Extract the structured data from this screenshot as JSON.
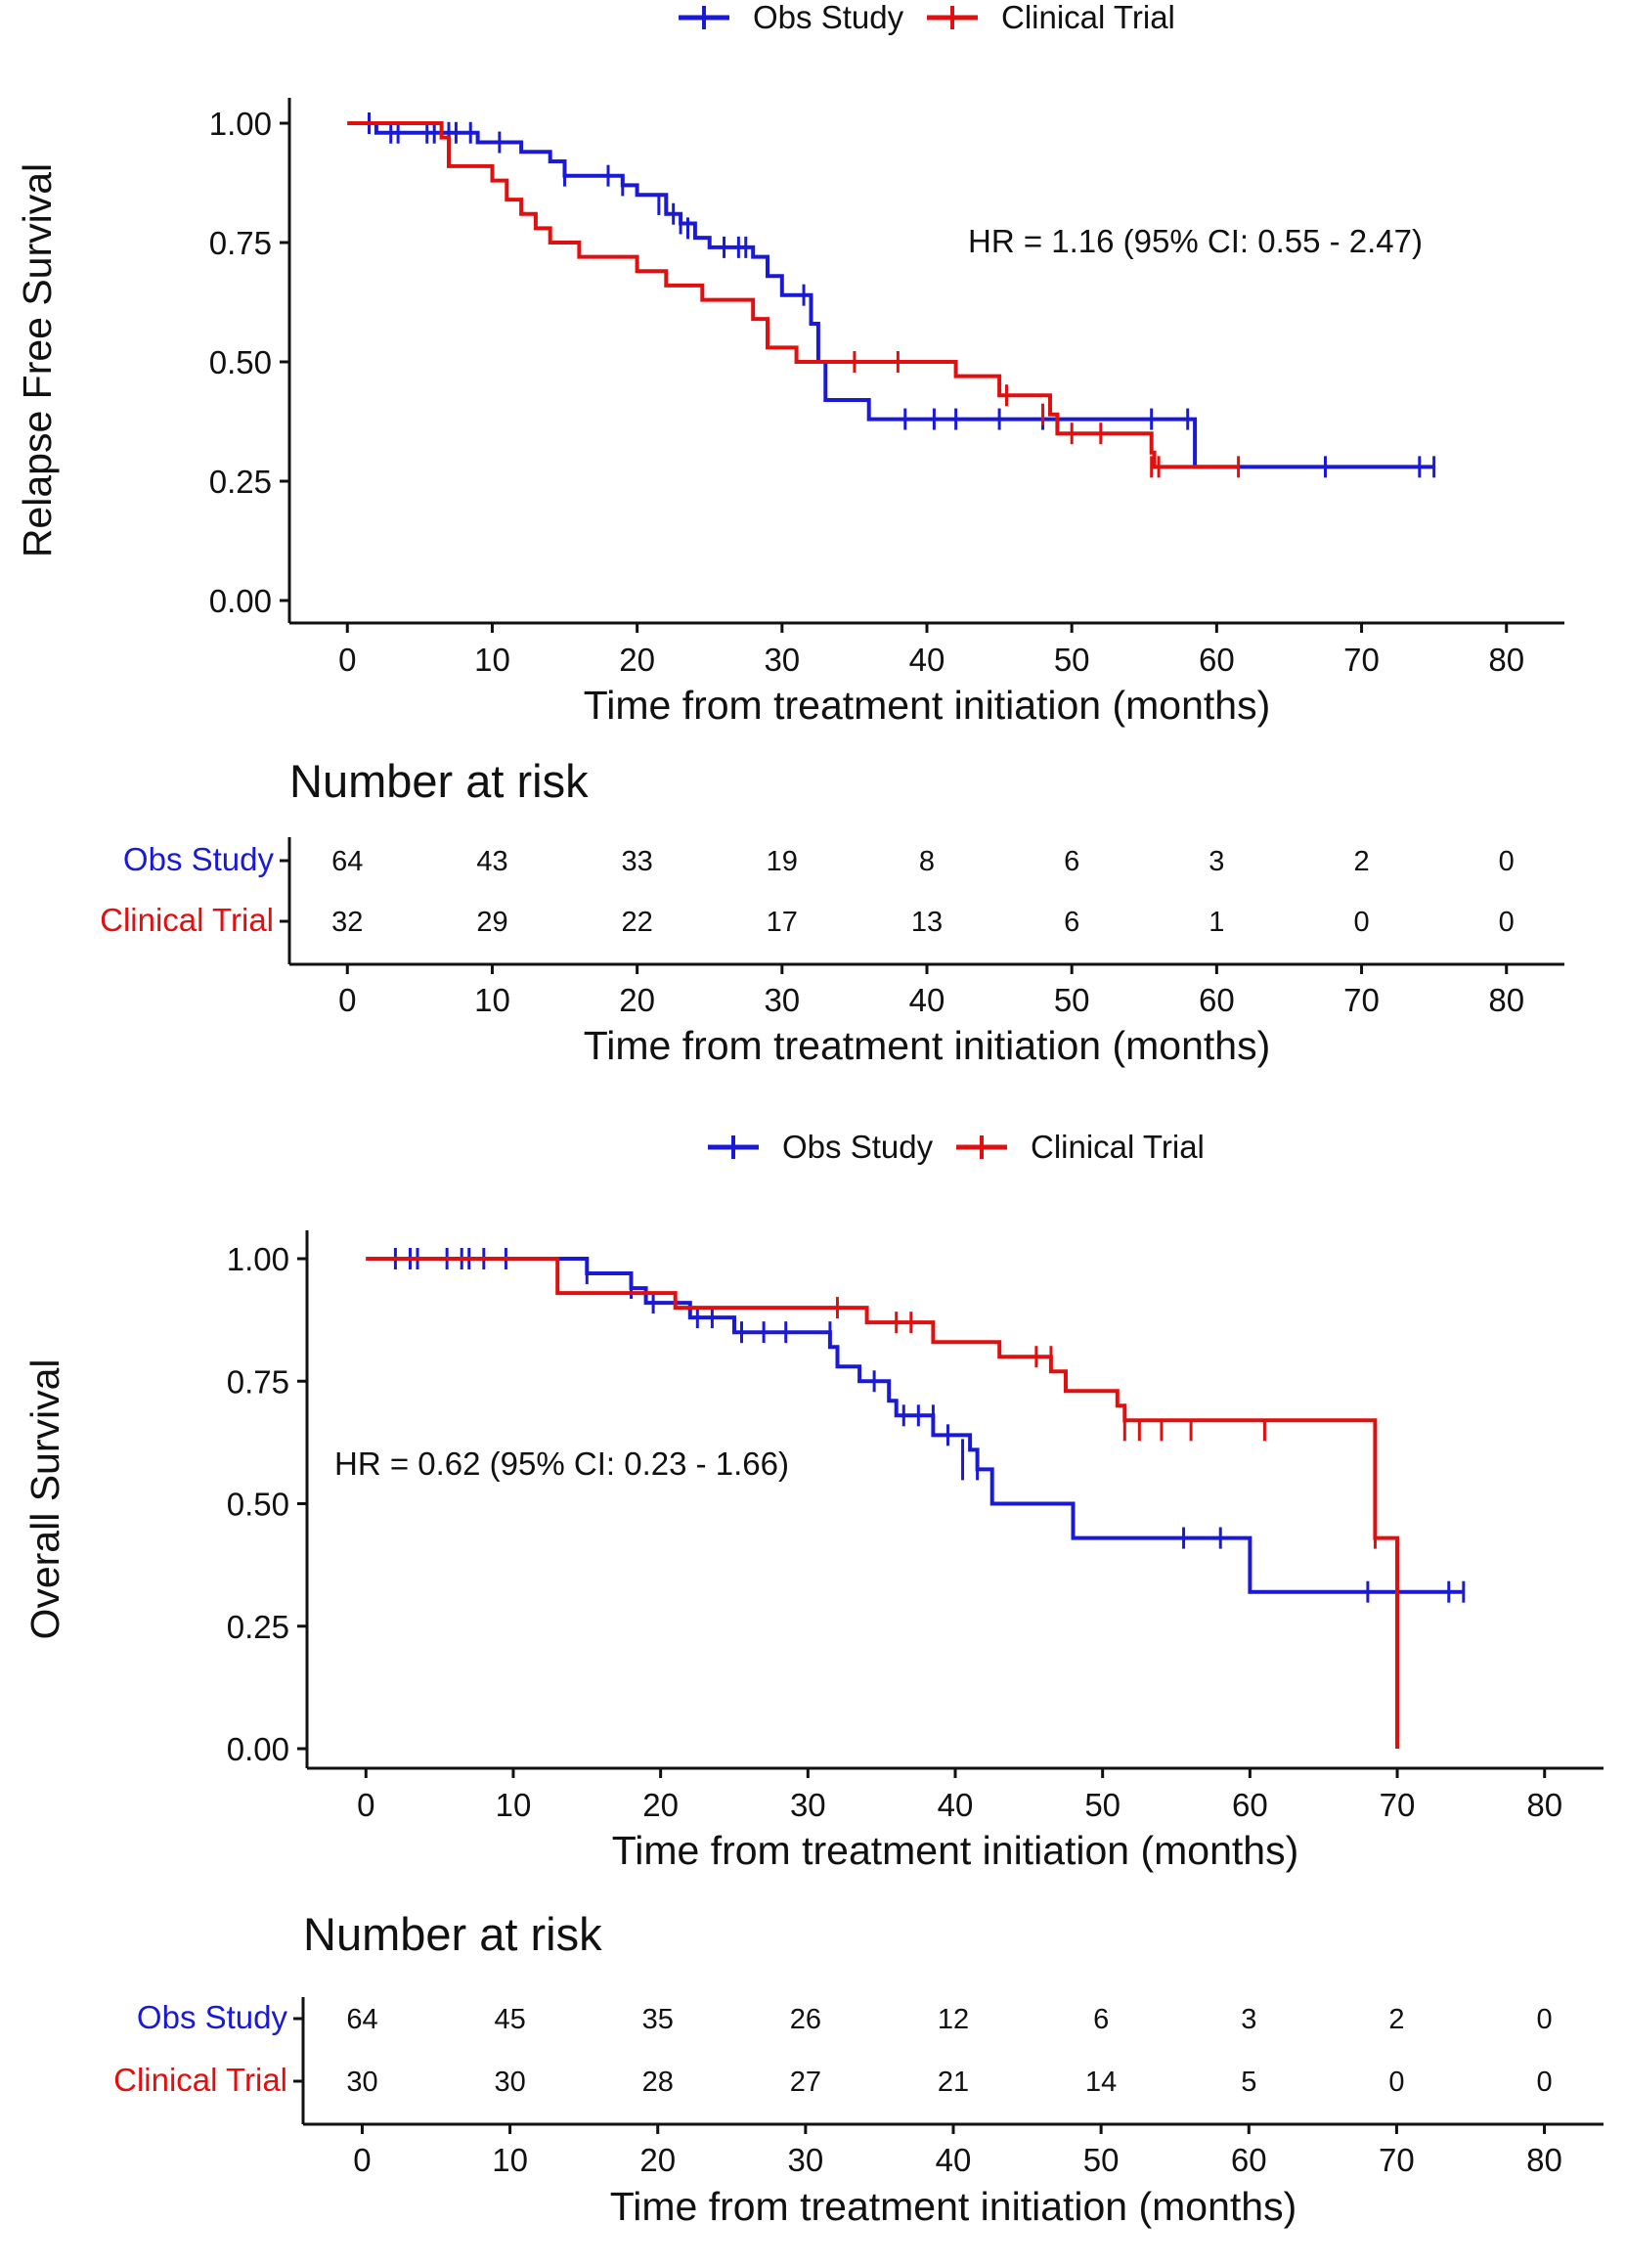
{
  "chart_data": [
    {
      "type": "line",
      "subtype": "kaplan-meier",
      "title": "",
      "xlabel": "Time from treatment initiation (months)",
      "ylabel": "Relapse Free Survival",
      "xlim": [
        -4,
        84
      ],
      "ylim": [
        0,
        1
      ],
      "xticks": [
        "0",
        "10",
        "20",
        "30",
        "40",
        "50",
        "60",
        "70",
        "80"
      ],
      "yticks": [
        "0.00",
        "0.25",
        "0.50",
        "0.75",
        "1.00"
      ],
      "legend": [
        "Obs Study",
        "Clinical Trial"
      ],
      "legend_position": "top",
      "annotation": "HR = 1.16 (95% CI: 0.55 - 2.47)",
      "series": [
        {
          "name": "Obs Study",
          "color": "#1a1ad6",
          "steps": [
            [
              0,
              1.0
            ],
            [
              2,
              0.98
            ],
            [
              9,
              0.96
            ],
            [
              12,
              0.94
            ],
            [
              14,
              0.92
            ],
            [
              15,
              0.89
            ],
            [
              19,
              0.87
            ],
            [
              20,
              0.85
            ],
            [
              22,
              0.81
            ],
            [
              23,
              0.79
            ],
            [
              24,
              0.76
            ],
            [
              25,
              0.74
            ],
            [
              28,
              0.72
            ],
            [
              29,
              0.68
            ],
            [
              30,
              0.64
            ],
            [
              32,
              0.58
            ],
            [
              32.5,
              0.5
            ],
            [
              33,
              0.42
            ],
            [
              36,
              0.38
            ],
            [
              58.5,
              0.28
            ],
            [
              75,
              0.28
            ]
          ],
          "censor": [
            [
              1.5,
              1.0
            ],
            [
              3,
              0.98
            ],
            [
              3.5,
              0.98
            ],
            [
              5.5,
              0.98
            ],
            [
              6,
              0.98
            ],
            [
              7,
              0.98
            ],
            [
              7.5,
              0.98
            ],
            [
              8.5,
              0.98
            ],
            [
              10.5,
              0.96
            ],
            [
              15,
              0.89
            ],
            [
              18,
              0.89
            ],
            [
              19,
              0.87
            ],
            [
              21.5,
              0.83
            ],
            [
              22.5,
              0.81
            ],
            [
              23,
              0.79
            ],
            [
              23.5,
              0.78
            ],
            [
              26,
              0.74
            ],
            [
              27,
              0.74
            ],
            [
              27.5,
              0.74
            ],
            [
              31.5,
              0.64
            ],
            [
              38.5,
              0.38
            ],
            [
              40.5,
              0.38
            ],
            [
              42,
              0.38
            ],
            [
              45,
              0.38
            ],
            [
              48,
              0.38
            ],
            [
              55.5,
              0.38
            ],
            [
              58,
              0.38
            ],
            [
              67.5,
              0.28
            ],
            [
              74,
              0.28
            ],
            [
              75,
              0.28
            ]
          ]
        },
        {
          "name": "Clinical Trial",
          "color": "#e01010",
          "steps": [
            [
              0,
              1.0
            ],
            [
              6.5,
              0.97
            ],
            [
              7,
              0.91
            ],
            [
              10,
              0.88
            ],
            [
              11,
              0.84
            ],
            [
              12,
              0.81
            ],
            [
              13,
              0.78
            ],
            [
              14,
              0.75
            ],
            [
              16,
              0.72
            ],
            [
              20,
              0.69
            ],
            [
              22,
              0.66
            ],
            [
              24.5,
              0.63
            ],
            [
              28,
              0.59
            ],
            [
              29,
              0.53
            ],
            [
              31,
              0.5
            ],
            [
              42,
              0.47
            ],
            [
              45,
              0.43
            ],
            [
              48.5,
              0.39
            ],
            [
              49,
              0.35
            ],
            [
              55.5,
              0.31
            ],
            [
              55.7,
              0.28
            ],
            [
              61.5,
              0.28
            ]
          ],
          "censor": [
            [
              35,
              0.5
            ],
            [
              38,
              0.5
            ],
            [
              45.5,
              0.43
            ],
            [
              48,
              0.39
            ],
            [
              50,
              0.35
            ],
            [
              52,
              0.35
            ],
            [
              55.5,
              0.28
            ],
            [
              56,
              0.28
            ],
            [
              61.5,
              0.28
            ]
          ]
        }
      ],
      "risk_table": {
        "title": "Number at risk",
        "time_points": [
          "0",
          "10",
          "20",
          "30",
          "40",
          "50",
          "60",
          "70",
          "80"
        ],
        "rows": [
          {
            "label": "Obs Study",
            "color": "#1a1ad6",
            "values": [
              "64",
              "43",
              "33",
              "19",
              "8",
              "6",
              "3",
              "2",
              "0"
            ]
          },
          {
            "label": "Clinical Trial",
            "color": "#e01010",
            "values": [
              "32",
              "29",
              "22",
              "17",
              "13",
              "6",
              "1",
              "0",
              "0"
            ]
          }
        ],
        "xlabel": "Time from treatment initiation (months)"
      }
    },
    {
      "type": "line",
      "subtype": "kaplan-meier",
      "title": "",
      "xlabel": "Time from treatment initiation (months)",
      "ylabel": "Overall Survival",
      "xlim": [
        -4,
        84
      ],
      "ylim": [
        0,
        1
      ],
      "xticks": [
        "0",
        "10",
        "20",
        "30",
        "40",
        "50",
        "60",
        "70",
        "80"
      ],
      "yticks": [
        "0.00",
        "0.25",
        "0.50",
        "0.75",
        "1.00"
      ],
      "legend": [
        "Obs Study",
        "Clinical Trial"
      ],
      "legend_position": "top",
      "annotation": "HR = 0.62 (95% CI: 0.23 - 1.66)",
      "series": [
        {
          "name": "Obs Study",
          "color": "#1a1ad6",
          "steps": [
            [
              0,
              1.0
            ],
            [
              15,
              0.97
            ],
            [
              18,
              0.94
            ],
            [
              19,
              0.91
            ],
            [
              22,
              0.88
            ],
            [
              25,
              0.85
            ],
            [
              31.5,
              0.82
            ],
            [
              32,
              0.78
            ],
            [
              33.5,
              0.75
            ],
            [
              35.5,
              0.71
            ],
            [
              36,
              0.68
            ],
            [
              38.5,
              0.64
            ],
            [
              41,
              0.61
            ],
            [
              41.5,
              0.57
            ],
            [
              42.5,
              0.5
            ],
            [
              48,
              0.43
            ],
            [
              60,
              0.32
            ],
            [
              74.5,
              0.32
            ]
          ],
          "censor": [
            [
              2,
              1.0
            ],
            [
              3,
              1.0
            ],
            [
              3.5,
              1.0
            ],
            [
              5.5,
              1.0
            ],
            [
              6.5,
              1.0
            ],
            [
              7,
              1.0
            ],
            [
              8,
              1.0
            ],
            [
              9.5,
              1.0
            ],
            [
              15,
              0.97
            ],
            [
              18,
              0.94
            ],
            [
              19.5,
              0.91
            ],
            [
              22.5,
              0.88
            ],
            [
              23.5,
              0.88
            ],
            [
              25.5,
              0.85
            ],
            [
              27,
              0.85
            ],
            [
              28.5,
              0.85
            ],
            [
              31.5,
              0.85
            ],
            [
              34.5,
              0.75
            ],
            [
              36.5,
              0.68
            ],
            [
              37.5,
              0.68
            ],
            [
              38.5,
              0.68
            ],
            [
              39.5,
              0.64
            ],
            [
              40.5,
              0.61
            ],
            [
              40.5,
              0.57
            ],
            [
              41.5,
              0.57
            ],
            [
              55.5,
              0.43
            ],
            [
              58,
              0.43
            ],
            [
              68,
              0.32
            ],
            [
              73.5,
              0.32
            ],
            [
              74.5,
              0.32
            ]
          ]
        },
        {
          "name": "Clinical Trial",
          "color": "#e01010",
          "steps": [
            [
              0,
              1.0
            ],
            [
              13,
              0.93
            ],
            [
              21,
              0.9
            ],
            [
              34,
              0.87
            ],
            [
              38.5,
              0.83
            ],
            [
              43,
              0.8
            ],
            [
              46.5,
              0.77
            ],
            [
              47.5,
              0.73
            ],
            [
              51,
              0.7
            ],
            [
              51.5,
              0.67
            ],
            [
              68.5,
              0.43
            ],
            [
              70,
              0.0
            ]
          ],
          "censor": [
            [
              32,
              0.9
            ],
            [
              36,
              0.87
            ],
            [
              37,
              0.87
            ],
            [
              45.5,
              0.8
            ],
            [
              46.5,
              0.8
            ],
            [
              51.5,
              0.65
            ],
            [
              52.5,
              0.65
            ],
            [
              54,
              0.65
            ],
            [
              56,
              0.65
            ],
            [
              61,
              0.65
            ],
            [
              68.5,
              0.43
            ]
          ]
        }
      ],
      "risk_table": {
        "title": "Number at risk",
        "time_points": [
          "0",
          "10",
          "20",
          "30",
          "40",
          "50",
          "60",
          "70",
          "80"
        ],
        "rows": [
          {
            "label": "Obs Study",
            "color": "#1a1ad6",
            "values": [
              "64",
              "45",
              "35",
              "26",
              "12",
              "6",
              "3",
              "2",
              "0"
            ]
          },
          {
            "label": "Clinical Trial",
            "color": "#e01010",
            "values": [
              "30",
              "30",
              "28",
              "27",
              "21",
              "14",
              "5",
              "0",
              "0"
            ]
          }
        ],
        "xlabel": "Time from treatment initiation (months)"
      }
    }
  ]
}
